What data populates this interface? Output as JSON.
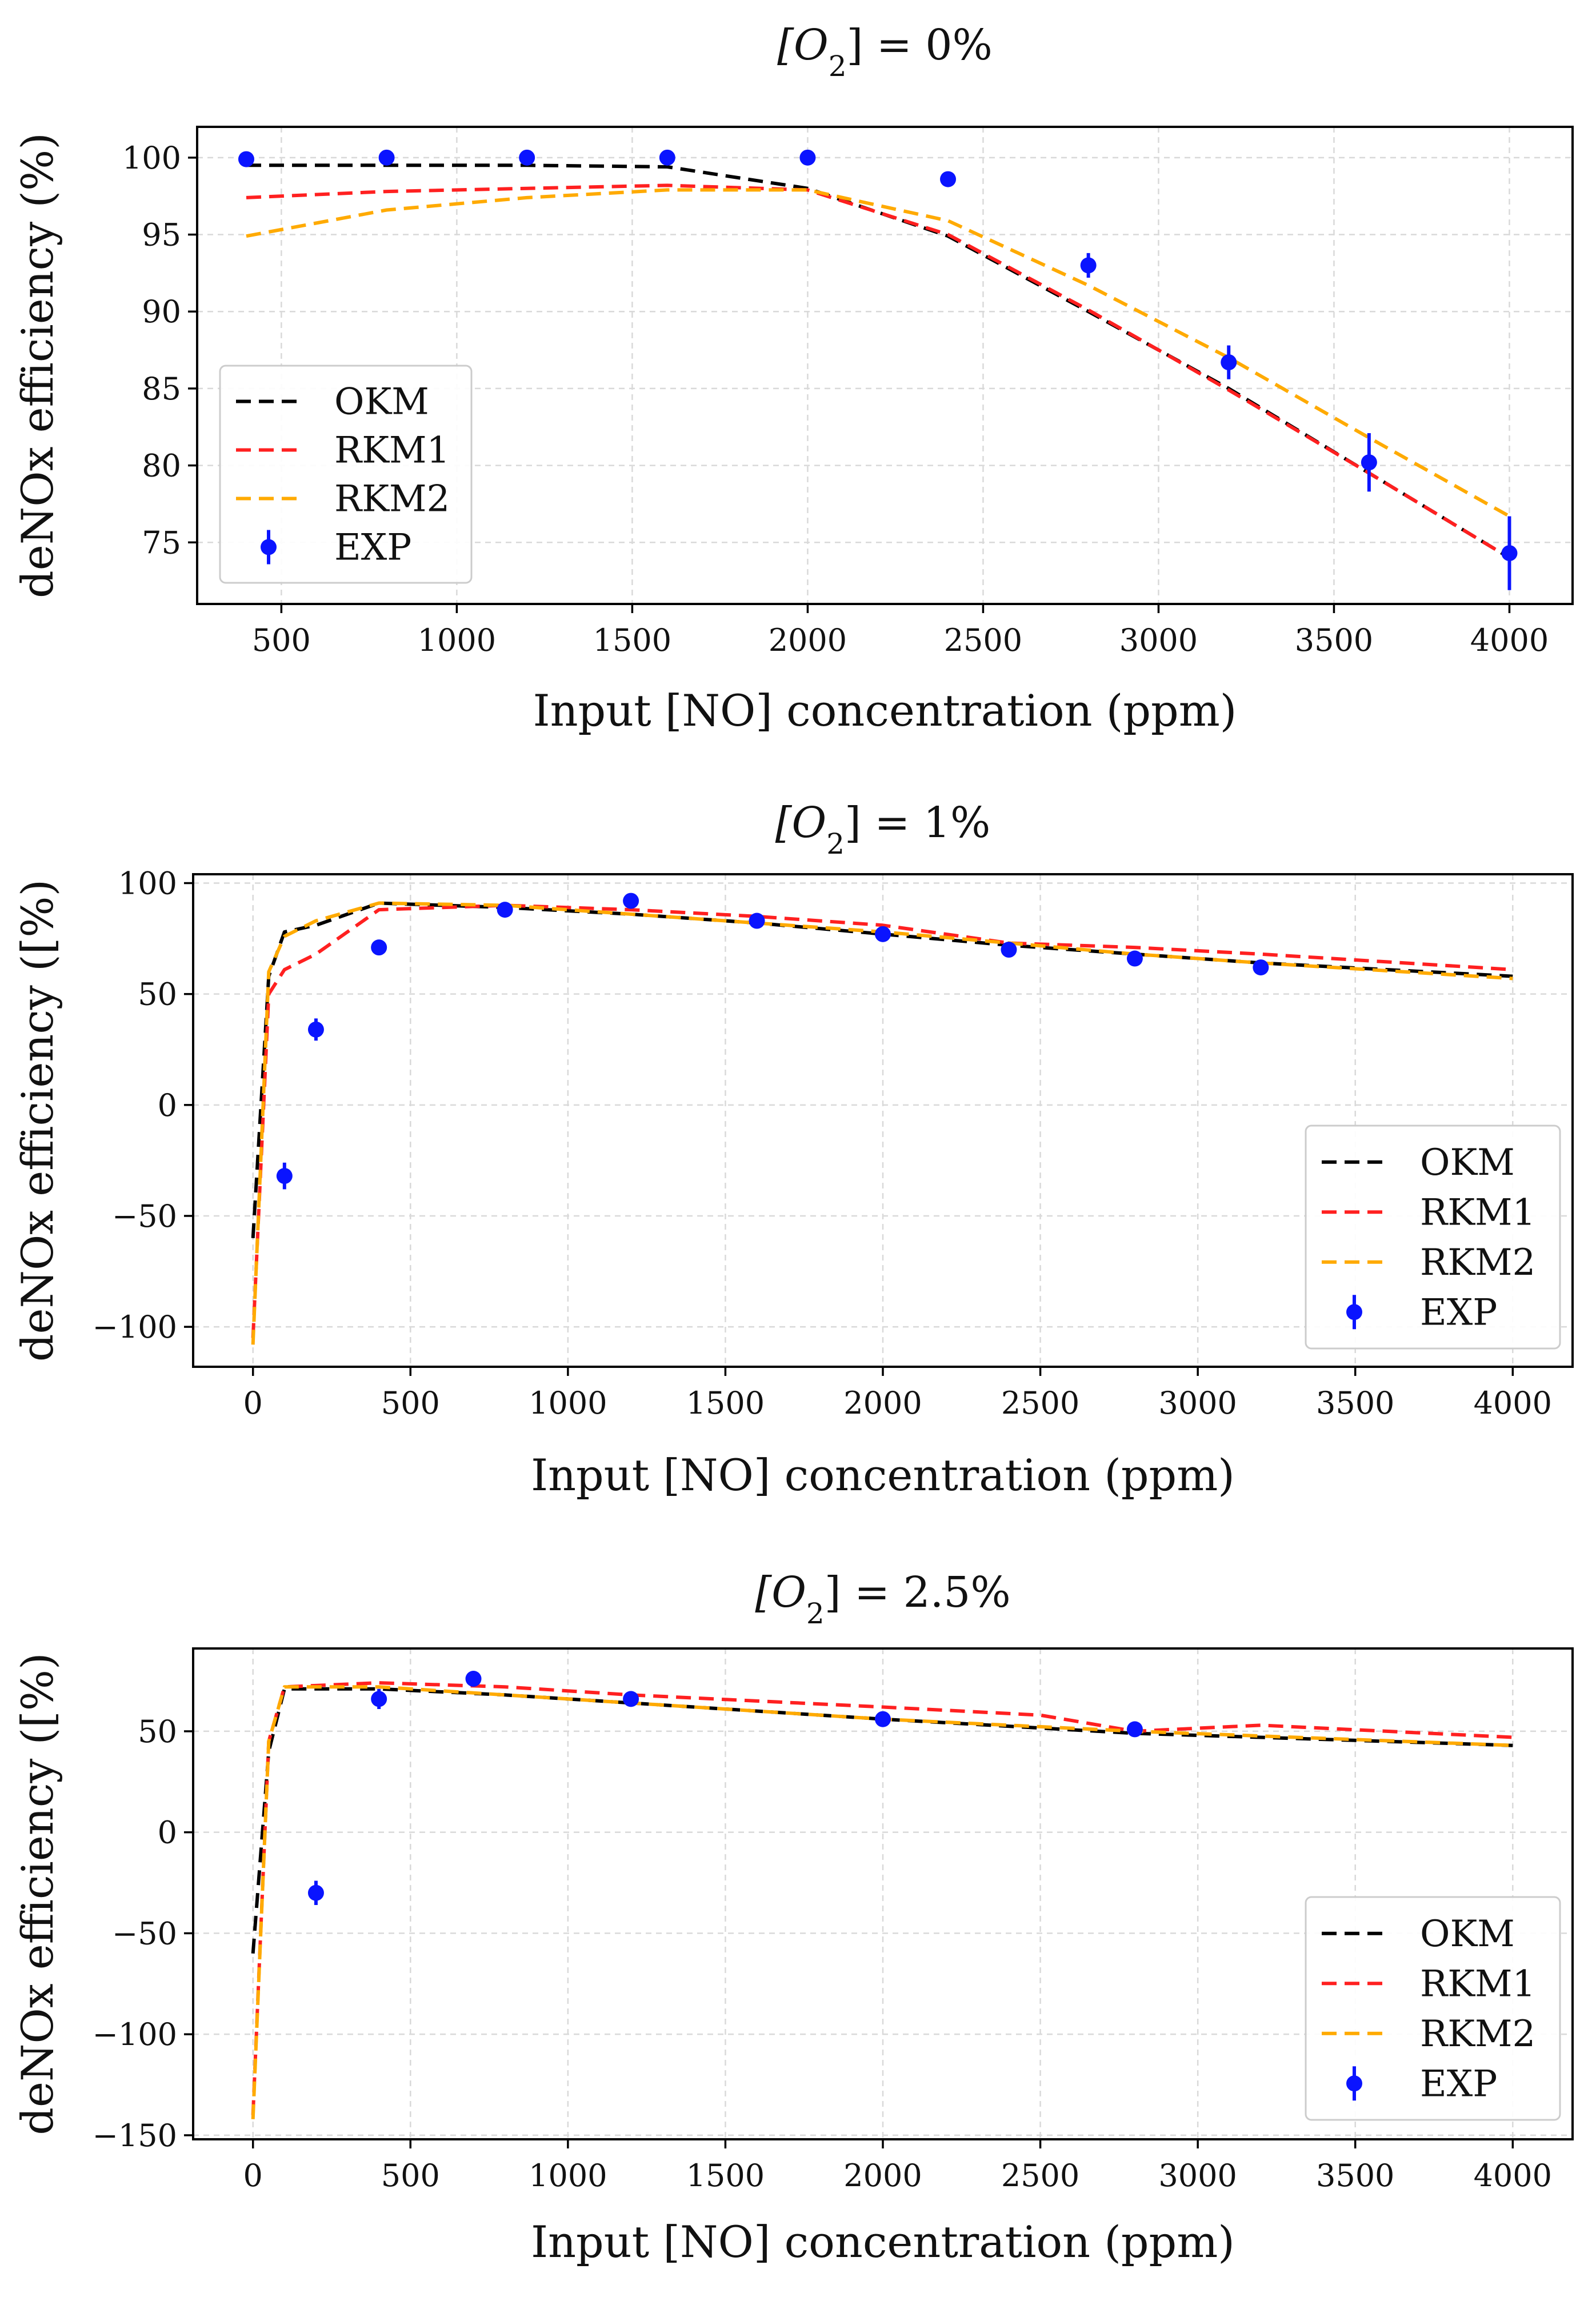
{
  "chart_data": [
    {
      "type": "line",
      "title_prefix": "[O",
      "title_sub": "2",
      "title_suffix": "] = 0%",
      "xlabel": "Input [NO] concentration (ppm)",
      "ylabel": "deNOx efficiency (%)",
      "xlim": [
        260,
        4180
      ],
      "ylim": [
        71,
        102
      ],
      "xticks": [
        500,
        1000,
        1500,
        2000,
        2500,
        3000,
        3500,
        4000
      ],
      "xtick_labels": [
        "500",
        "1000",
        "1500",
        "2000",
        "2500",
        "3000",
        "3500",
        "4000"
      ],
      "yticks": [
        75,
        80,
        85,
        90,
        95,
        100
      ],
      "ytick_labels": [
        "75",
        "80",
        "85",
        "90",
        "95",
        "100"
      ],
      "grid": true,
      "legend_position": "lower-left",
      "series": [
        {
          "name": "OKM",
          "color": "#000000",
          "dashed": true,
          "x": [
            400,
            800,
            1200,
            1600,
            2000,
            2400,
            2800,
            3200,
            3600,
            4000
          ],
          "y": [
            99.5,
            99.5,
            99.5,
            99.4,
            98.0,
            94.9,
            90.0,
            85.0,
            79.5,
            74.0
          ]
        },
        {
          "name": "RKM1",
          "color": "#ff2020",
          "dashed": true,
          "x": [
            400,
            800,
            1200,
            1600,
            2000,
            2400,
            2800,
            3200,
            3600,
            4000
          ],
          "y": [
            97.4,
            97.8,
            98.0,
            98.2,
            97.9,
            95.0,
            90.1,
            84.9,
            79.5,
            74.0
          ]
        },
        {
          "name": "RKM2",
          "color": "#ffaa00",
          "dashed": true,
          "x": [
            400,
            800,
            1200,
            1600,
            2000,
            2400,
            2800,
            3200,
            3600,
            4000
          ],
          "y": [
            94.9,
            96.6,
            97.4,
            97.9,
            97.9,
            95.9,
            91.7,
            87.0,
            81.8,
            76.7
          ]
        },
        {
          "name": "EXP",
          "color": "#0a14ff",
          "marker": true,
          "x": [
            400,
            800,
            1200,
            1600,
            2000,
            2400,
            2800,
            3200,
            3600,
            4000
          ],
          "y": [
            99.9,
            100.0,
            100.0,
            100.0,
            100.0,
            98.6,
            93.0,
            86.7,
            80.2,
            74.3
          ],
          "err": [
            0.1,
            0.1,
            0.1,
            0.1,
            0.1,
            0.2,
            0.8,
            1.1,
            1.9,
            2.4
          ]
        }
      ]
    },
    {
      "type": "line",
      "title_prefix": "[O",
      "title_sub": "2",
      "title_suffix": "] = 1%",
      "xlabel": "Input [NO] concentration (ppm)",
      "ylabel": "deNOx efficiency ([%)",
      "xlim": [
        -190,
        4190
      ],
      "ylim": [
        -118,
        104
      ],
      "xticks": [
        0,
        500,
        1000,
        1500,
        2000,
        2500,
        3000,
        3500,
        4000
      ],
      "xtick_labels": [
        "0",
        "500",
        "1000",
        "1500",
        "2000",
        "2500",
        "3000",
        "3500",
        "4000"
      ],
      "yticks": [
        -100,
        -50,
        0,
        50,
        100
      ],
      "ytick_labels": [
        "−100",
        "−50",
        "0",
        "50",
        "100"
      ],
      "grid": true,
      "legend_position": "lower-right",
      "series": [
        {
          "name": "OKM",
          "color": "#000000",
          "dashed": true,
          "x": [
            0,
            50,
            100,
            200,
            400,
            800,
            1200,
            1600,
            2000,
            2400,
            2800,
            3200,
            4000
          ],
          "y": [
            -60,
            58,
            78,
            81,
            91,
            89,
            86,
            82,
            77,
            72,
            68,
            64,
            58
          ]
        },
        {
          "name": "RKM1",
          "color": "#ff2020",
          "dashed": true,
          "x": [
            0,
            50,
            100,
            200,
            400,
            800,
            1200,
            1600,
            2000,
            2400,
            2800,
            3200,
            4000
          ],
          "y": [
            -105,
            50,
            61,
            68,
            88,
            90,
            88,
            85,
            81,
            73,
            71,
            68,
            61
          ]
        },
        {
          "name": "RKM2",
          "color": "#ffaa00",
          "dashed": true,
          "x": [
            0,
            50,
            100,
            200,
            400,
            800,
            1200,
            1600,
            2000,
            2400,
            2800,
            3200,
            4000
          ],
          "y": [
            -108,
            60,
            76,
            83,
            91,
            90,
            86,
            82,
            78,
            73,
            68,
            64,
            57
          ]
        },
        {
          "name": "EXP",
          "color": "#0a14ff",
          "marker": true,
          "x": [
            100,
            200,
            400,
            800,
            1200,
            1600,
            2000,
            2400,
            2800,
            3200
          ],
          "y": [
            -32,
            34,
            71,
            88,
            92,
            83,
            77,
            70,
            66,
            62
          ],
          "err": [
            6,
            5,
            3,
            2,
            2,
            2,
            2,
            2,
            2,
            2
          ]
        }
      ]
    },
    {
      "type": "line",
      "title_prefix": "[O",
      "title_sub": "2",
      "title_suffix": "] = 2.5%",
      "xlabel": "Input [NO] concentration (ppm)",
      "ylabel": "deNOx efficiency ([%)",
      "xlim": [
        -190,
        4190
      ],
      "ylim": [
        -152,
        91
      ],
      "xticks": [
        0,
        500,
        1000,
        1500,
        2000,
        2500,
        3000,
        3500,
        4000
      ],
      "xtick_labels": [
        "0",
        "500",
        "1000",
        "1500",
        "2000",
        "2500",
        "3000",
        "3500",
        "4000"
      ],
      "yticks": [
        -150,
        -100,
        -50,
        0,
        50
      ],
      "ytick_labels": [
        "−150",
        "−100",
        "−50",
        "0",
        "50"
      ],
      "grid": true,
      "legend_position": "lower-right",
      "series": [
        {
          "name": "OKM",
          "color": "#000000",
          "dashed": true,
          "x": [
            0,
            50,
            100,
            400,
            800,
            1200,
            2000,
            2800,
            4000
          ],
          "y": [
            -60,
            40,
            71,
            71,
            68,
            64,
            56,
            49,
            43
          ]
        },
        {
          "name": "RKM1",
          "color": "#ff2020",
          "dashed": true,
          "x": [
            0,
            50,
            100,
            400,
            800,
            1200,
            2000,
            2500,
            2800,
            3200,
            4000
          ],
          "y": [
            -140,
            45,
            72,
            74,
            72,
            68,
            62,
            58,
            50,
            53,
            47
          ]
        },
        {
          "name": "RKM2",
          "color": "#ffaa00",
          "dashed": true,
          "x": [
            0,
            50,
            100,
            400,
            800,
            1200,
            2000,
            2800,
            4000
          ],
          "y": [
            -142,
            45,
            72,
            72,
            68,
            64,
            56,
            50,
            43
          ]
        },
        {
          "name": "EXP",
          "color": "#0a14ff",
          "marker": true,
          "x": [
            200,
            400,
            700,
            1200,
            2000,
            2800
          ],
          "y": [
            -30,
            66,
            76,
            66,
            56,
            51
          ],
          "err": [
            6,
            5,
            3,
            3,
            3,
            2
          ]
        }
      ]
    }
  ]
}
